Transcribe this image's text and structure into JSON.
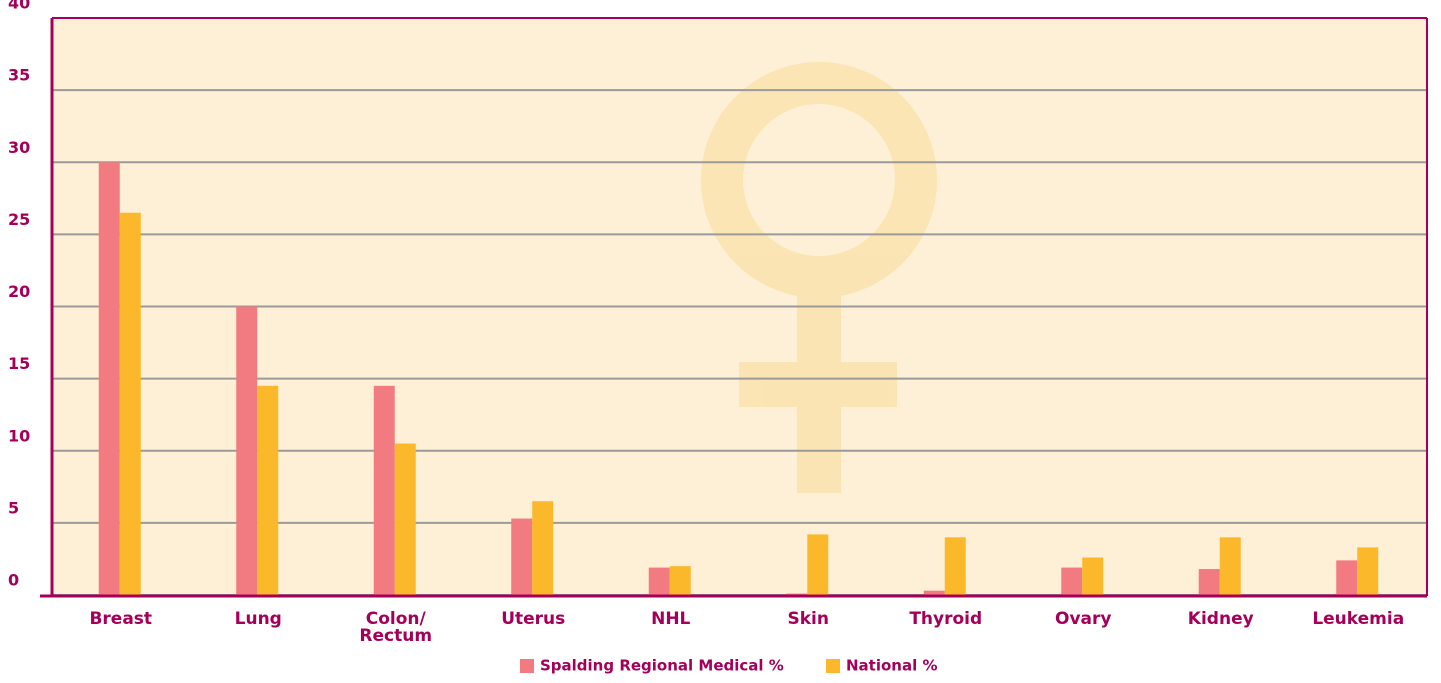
{
  "chart_data": {
    "type": "bar",
    "categories": [
      "Breast",
      "Lung",
      "Colon/\nRectum",
      "Uterus",
      "NHL",
      "Skin",
      "Thyroid",
      "Ovary",
      "Kidney",
      "Leukemia"
    ],
    "series": [
      {
        "name": "Spalding Regional Medical %",
        "color": "#f17b80",
        "values": [
          30,
          20,
          14.5,
          5.3,
          1.9,
          0.1,
          0.3,
          1.9,
          1.8,
          2.4
        ]
      },
      {
        "name": "National %",
        "color": "#fbb82b",
        "values": [
          26.5,
          14.5,
          10.5,
          6.5,
          2.0,
          4.2,
          4.0,
          2.6,
          4.0,
          3.3
        ]
      }
    ],
    "ylim": [
      0,
      40
    ],
    "yticks": [
      0,
      5,
      10,
      15,
      20,
      25,
      30,
      35,
      40
    ],
    "grid": true,
    "legend": "bottom"
  }
}
